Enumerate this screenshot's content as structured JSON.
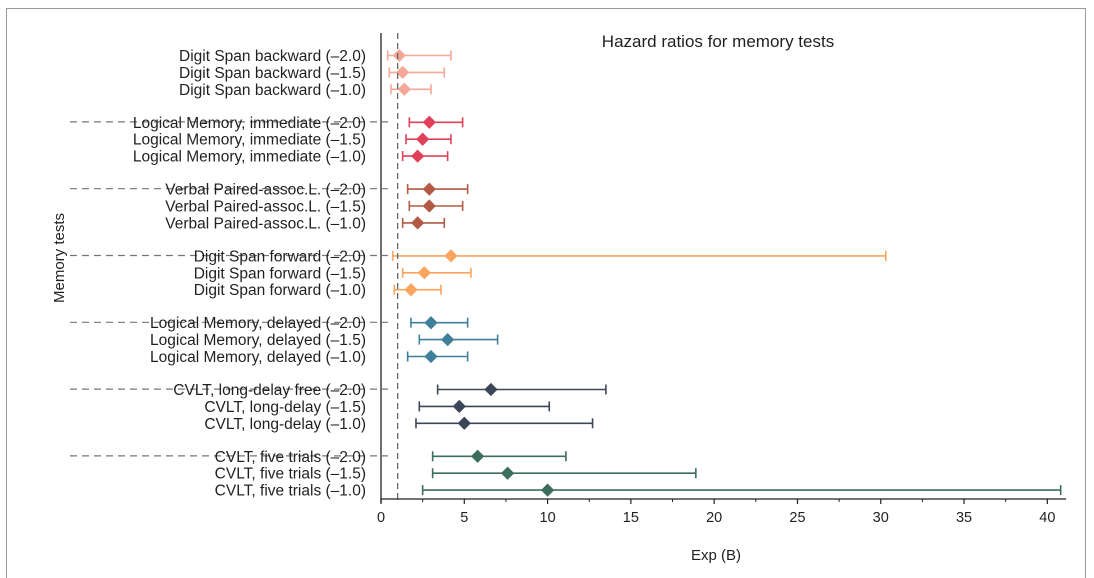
{
  "chart_data": {
    "type": "forest",
    "title": "Hazard ratios for memory tests",
    "xlabel": "Exp (B)",
    "ylabel": "Memory tests",
    "xlim": [
      0,
      41
    ],
    "xticks": [
      0,
      5,
      10,
      15,
      20,
      25,
      30,
      35,
      40
    ],
    "reference_line": 1,
    "groups": [
      {
        "color": "#f5a898",
        "rows": [
          {
            "label": "Digit Span backward (–2.0)",
            "estimate": 1.1,
            "lower": 0.4,
            "upper": 4.2
          },
          {
            "label": "Digit Span backward (–1.5)",
            "estimate": 1.3,
            "lower": 0.5,
            "upper": 3.8
          },
          {
            "label": "Digit Span backward (–1.0)",
            "estimate": 1.4,
            "lower": 0.6,
            "upper": 3.0
          }
        ]
      },
      {
        "color": "#e0405a",
        "rows": [
          {
            "label": "Logical Memory, immediate (–2.0)",
            "estimate": 2.9,
            "lower": 1.7,
            "upper": 4.9
          },
          {
            "label": "Logical Memory, immediate (–1.5)",
            "estimate": 2.5,
            "lower": 1.5,
            "upper": 4.2
          },
          {
            "label": "Logical Memory, immediate (–1.0)",
            "estimate": 2.2,
            "lower": 1.3,
            "upper": 4.0
          }
        ]
      },
      {
        "color": "#b25a44",
        "rows": [
          {
            "label": "Verbal Paired-assoc.L. (–2.0)",
            "estimate": 2.9,
            "lower": 1.6,
            "upper": 5.2
          },
          {
            "label": "Verbal Paired-assoc.L. (–1.5)",
            "estimate": 2.9,
            "lower": 1.7,
            "upper": 4.9
          },
          {
            "label": "Verbal Paired-assoc.L. (–1.0)",
            "estimate": 2.2,
            "lower": 1.3,
            "upper": 3.8
          }
        ]
      },
      {
        "color": "#f9a55e",
        "rows": [
          {
            "label": "Digit Span forward (–2.0)",
            "estimate": 4.2,
            "lower": 0.7,
            "upper": 30.3
          },
          {
            "label": "Digit Span forward (–1.5)",
            "estimate": 2.6,
            "lower": 1.3,
            "upper": 5.4
          },
          {
            "label": "Digit Span forward (–1.0)",
            "estimate": 1.8,
            "lower": 0.8,
            "upper": 3.6
          }
        ]
      },
      {
        "color": "#3f7f9a",
        "rows": [
          {
            "label": "Logical Memory, delayed (–2.0)",
            "estimate": 3.0,
            "lower": 1.8,
            "upper": 5.2
          },
          {
            "label": "Logical Memory, delayed (–1.5)",
            "estimate": 4.0,
            "lower": 2.3,
            "upper": 7.0
          },
          {
            "label": "Logical Memory, delayed (–1.0)",
            "estimate": 3.0,
            "lower": 1.6,
            "upper": 5.2
          }
        ]
      },
      {
        "color": "#3d4658",
        "rows": [
          {
            "label": "CVLT, long-delay free (–2.0)",
            "estimate": 6.6,
            "lower": 3.4,
            "upper": 13.5
          },
          {
            "label": "CVLT, long-delay (–1.5)",
            "estimate": 4.7,
            "lower": 2.3,
            "upper": 10.1
          },
          {
            "label": "CVLT, long-delay (–1.0)",
            "estimate": 5.0,
            "lower": 2.1,
            "upper": 12.7
          }
        ]
      },
      {
        "color": "#3c6d5e",
        "rows": [
          {
            "label": "CVLT, five trials (–2.0)",
            "estimate": 5.8,
            "lower": 3.1,
            "upper": 11.1
          },
          {
            "label": "CVLT, five trials (–1.5)",
            "estimate": 7.6,
            "lower": 3.1,
            "upper": 18.9
          },
          {
            "label": "CVLT, five trials (–1.0)",
            "estimate": 10.0,
            "lower": 2.5,
            "upper": 40.8
          }
        ]
      }
    ]
  }
}
